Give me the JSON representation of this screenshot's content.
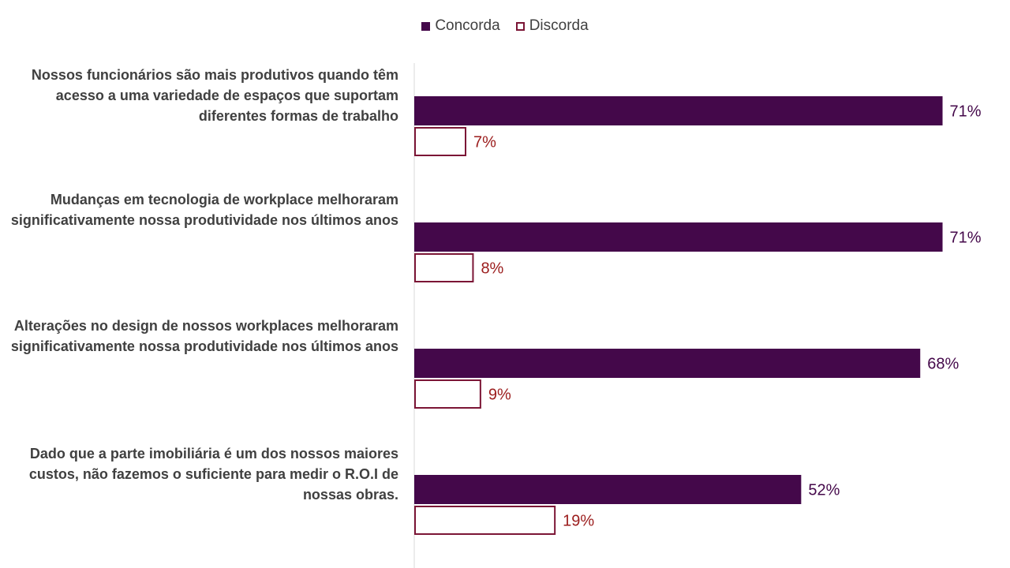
{
  "chart_data": {
    "type": "bar",
    "orientation": "horizontal",
    "categories": [
      "Nossos funcionários são mais produtivos quando têm acesso a uma variedade de espaços que suportam diferentes formas de trabalho",
      "Mudanças em tecnologia de workplace melhoraram significativamente nossa produtividade nos últimos anos",
      "Alterações no design de nossos workplaces melhoraram significativamente nossa produtividade nos últimos anos",
      "Dado que a parte imobiliária é um dos nossos maiores custos, não fazemos o suficiente para medir o R.O.I de nossas obras."
    ],
    "series": [
      {
        "name": "Concorda",
        "values": [
          71,
          71,
          68,
          52
        ],
        "labels": [
          "71%",
          "71%",
          "68%",
          "52%"
        ],
        "color": "#44084a",
        "style": "filled"
      },
      {
        "name": "Discorda",
        "values": [
          7,
          8,
          9,
          19
        ],
        "labels": [
          "7%",
          "8%",
          "9%",
          "19%"
        ],
        "color": "#7b1535",
        "style": "outline"
      }
    ],
    "legend_position": "top-center",
    "grid": false
  },
  "colors": {
    "concorda": "#44084a",
    "discorda": "#7b1535",
    "discorda_label": "#9b1c1c",
    "text": "#404040",
    "axis": "#d9d9d9"
  }
}
